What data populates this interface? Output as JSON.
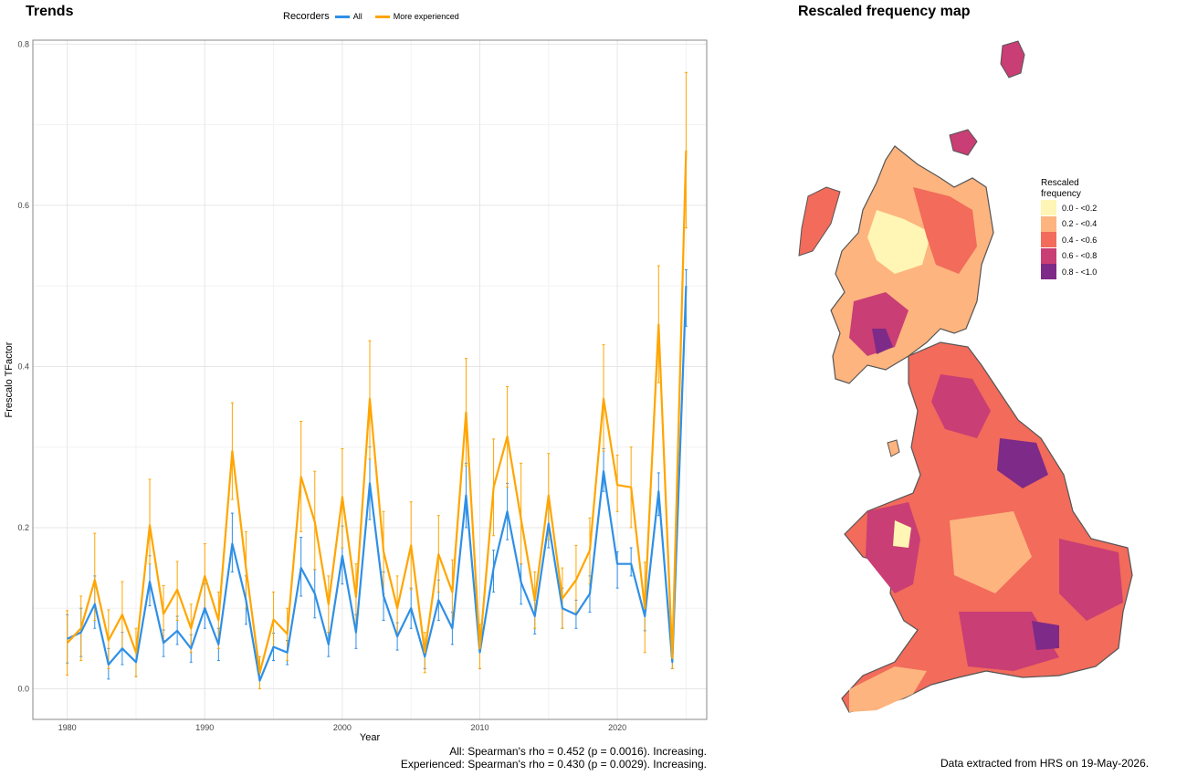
{
  "trends_title": "Trends",
  "map_title": "Rescaled frequency map",
  "legend": {
    "title": "Recorders",
    "items": [
      {
        "label": "All",
        "color": "#2E8FE6"
      },
      {
        "label": "More experienced",
        "color": "#FFA500"
      }
    ]
  },
  "footer": {
    "stats_all": "All: Spearman's rho = 0.452 (p = 0.0016). Increasing.",
    "stats_exp": "Experienced: Spearman's rho = 0.430 (p = 0.0029). Increasing.",
    "source": "Data extracted from HRS on 19-May-2026."
  },
  "map_legend": {
    "title_line1": "Rescaled",
    "title_line2": "frequency",
    "items": [
      {
        "label": "0.0 - <0.2",
        "color": "#FFF5B4"
      },
      {
        "label": "0.2 - <0.4",
        "color": "#FDB47E"
      },
      {
        "label": "0.4 - <0.6",
        "color": "#F26B5B"
      },
      {
        "label": "0.6 - <0.8",
        "color": "#C93E74"
      },
      {
        "label": "0.8 - <1.0",
        "color": "#7E2A88"
      }
    ]
  },
  "chart_data": {
    "type": "line",
    "xlabel": "Year",
    "ylabel": "Frescalo TFactor",
    "xlim": [
      1977.5,
      2026.5
    ],
    "ylim": [
      -0.038,
      0.805
    ],
    "xticks": [
      1980,
      1990,
      2000,
      2010,
      2020
    ],
    "yticks": [
      0.0,
      0.2,
      0.4,
      0.6,
      0.8
    ],
    "ytick_labels": [
      "0.0",
      "0.2",
      "0.4",
      "0.6",
      "0.8"
    ],
    "grid": true,
    "x": [
      1980,
      1981,
      1982,
      1983,
      1984,
      1985,
      1986,
      1987,
      1988,
      1989,
      1990,
      1991,
      1992,
      1993,
      1994,
      1995,
      1996,
      1997,
      1998,
      1999,
      2000,
      2001,
      2002,
      2003,
      2004,
      2005,
      2006,
      2007,
      2008,
      2009,
      2010,
      2011,
      2012,
      2013,
      2014,
      2015,
      2016,
      2017,
      2018,
      2019,
      2020,
      2021,
      2022,
      2023,
      2024,
      2025
    ],
    "series": [
      {
        "name": "All",
        "values": [
          0.062,
          0.07,
          0.105,
          0.03,
          0.05,
          0.033,
          0.133,
          0.057,
          0.072,
          0.05,
          0.1,
          0.055,
          0.18,
          0.11,
          0.01,
          0.052,
          0.045,
          0.15,
          0.118,
          0.055,
          0.165,
          0.07,
          0.255,
          0.115,
          0.065,
          0.1,
          0.04,
          0.11,
          0.075,
          0.24,
          0.045,
          0.15,
          0.22,
          0.132,
          0.09,
          0.205,
          0.1,
          0.092,
          0.118,
          0.27,
          0.155,
          0.155,
          0.09,
          0.245,
          0.033,
          0.5
        ],
        "lower": [
          0.032,
          0.04,
          0.075,
          0.012,
          0.03,
          0.015,
          0.103,
          0.04,
          0.055,
          0.033,
          0.075,
          0.035,
          0.145,
          0.08,
          0.0,
          0.035,
          0.03,
          0.115,
          0.088,
          0.04,
          0.13,
          0.05,
          0.21,
          0.085,
          0.048,
          0.075,
          0.025,
          0.085,
          0.055,
          0.2,
          0.025,
          0.12,
          0.185,
          0.105,
          0.068,
          0.175,
          0.075,
          0.075,
          0.095,
          0.245,
          0.125,
          0.14,
          0.072,
          0.215,
          0.025,
          0.45
        ],
        "upper": [
          0.092,
          0.1,
          0.14,
          0.05,
          0.07,
          0.05,
          0.165,
          0.073,
          0.09,
          0.067,
          0.13,
          0.075,
          0.218,
          0.14,
          0.02,
          0.069,
          0.06,
          0.188,
          0.148,
          0.07,
          0.202,
          0.092,
          0.3,
          0.145,
          0.082,
          0.125,
          0.055,
          0.135,
          0.095,
          0.28,
          0.065,
          0.172,
          0.255,
          0.155,
          0.11,
          0.235,
          0.125,
          0.11,
          0.14,
          0.298,
          0.17,
          0.175,
          0.105,
          0.268,
          0.045,
          0.52
        ]
      },
      {
        "name": "More experienced",
        "values": [
          0.057,
          0.075,
          0.135,
          0.06,
          0.092,
          0.045,
          0.203,
          0.093,
          0.123,
          0.075,
          0.14,
          0.085,
          0.295,
          0.15,
          0.02,
          0.086,
          0.068,
          0.263,
          0.207,
          0.105,
          0.238,
          0.114,
          0.36,
          0.17,
          0.1,
          0.178,
          0.045,
          0.167,
          0.12,
          0.343,
          0.05,
          0.25,
          0.313,
          0.21,
          0.11,
          0.24,
          0.112,
          0.135,
          0.172,
          0.36,
          0.253,
          0.25,
          0.1,
          0.452,
          0.038,
          0.668
        ],
        "lower": [
          0.017,
          0.035,
          0.085,
          0.025,
          0.05,
          0.015,
          0.155,
          0.06,
          0.085,
          0.045,
          0.1,
          0.05,
          0.235,
          0.1,
          0.0,
          0.052,
          0.035,
          0.195,
          0.148,
          0.07,
          0.175,
          0.075,
          0.285,
          0.118,
          0.065,
          0.123,
          0.02,
          0.12,
          0.08,
          0.277,
          0.025,
          0.19,
          0.25,
          0.155,
          0.075,
          0.185,
          0.075,
          0.095,
          0.13,
          0.295,
          0.22,
          0.2,
          0.045,
          0.38,
          0.025,
          0.572
        ],
        "upper": [
          0.097,
          0.115,
          0.193,
          0.098,
          0.133,
          0.075,
          0.26,
          0.128,
          0.158,
          0.105,
          0.18,
          0.12,
          0.355,
          0.195,
          0.04,
          0.12,
          0.1,
          0.332,
          0.27,
          0.14,
          0.298,
          0.155,
          0.432,
          0.22,
          0.14,
          0.232,
          0.07,
          0.215,
          0.16,
          0.41,
          0.08,
          0.31,
          0.375,
          0.28,
          0.145,
          0.292,
          0.15,
          0.178,
          0.212,
          0.427,
          0.29,
          0.3,
          0.157,
          0.525,
          0.05,
          0.765
        ]
      }
    ]
  }
}
